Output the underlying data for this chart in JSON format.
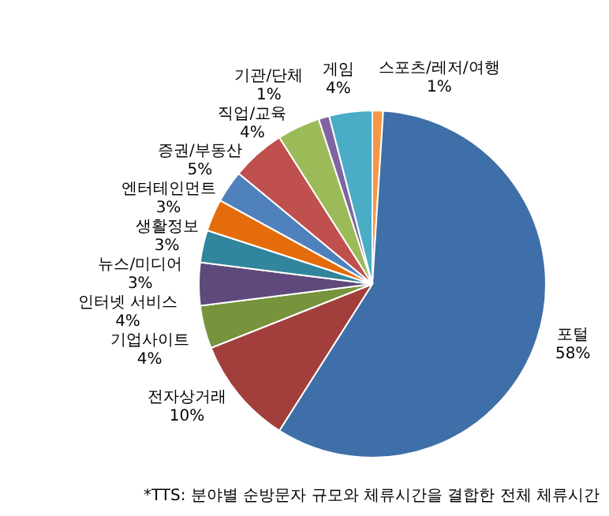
{
  "chart_data": {
    "type": "pie",
    "categories": [
      "스포츠/레저/여행",
      "포털",
      "전자상거래",
      "기업사이트",
      "인터넷 서비스",
      "뉴스/미디어",
      "생활정보",
      "엔터테인먼트",
      "증권/부동산",
      "직업/교육",
      "기관/단체",
      "게임"
    ],
    "values": [
      1,
      58,
      10,
      4,
      4,
      3,
      3,
      3,
      5,
      4,
      1,
      4
    ],
    "value_labels": [
      "1%",
      "58%",
      "10%",
      "4%",
      "4%",
      "3%",
      "3%",
      "3%",
      "5%",
      "4%",
      "1%",
      "4%"
    ],
    "colors": [
      "#F79646",
      "#3F6FA8",
      "#A23E3B",
      "#77933C",
      "#5F497A",
      "#31859C",
      "#E46C0A",
      "#4F81BD",
      "#C0504D",
      "#9BBB59",
      "#8064A2",
      "#4BACC6"
    ],
    "annotations": [
      "*TTS: 분야별 순방문자 규모와 체류시간을 결합한 전체 체류시간"
    ]
  }
}
